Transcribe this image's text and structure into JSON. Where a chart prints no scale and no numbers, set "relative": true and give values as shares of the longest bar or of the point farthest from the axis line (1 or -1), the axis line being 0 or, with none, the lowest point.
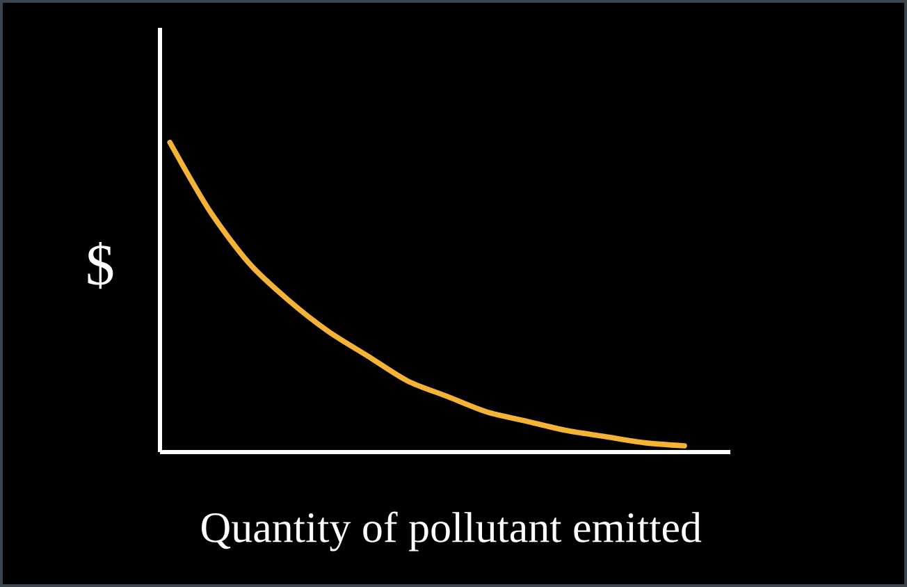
{
  "chart_data": {
    "type": "line",
    "relative": true,
    "xlabel": "Quantity of pollutant emitted",
    "ylabel": "$",
    "categories": [
      null,
      null,
      null,
      null,
      null,
      null,
      null,
      null,
      null,
      null,
      null,
      null,
      null,
      null
    ],
    "series": [
      {
        "color": "#f5b335",
        "values": [
          1,
          0.78,
          0.61,
          0.49,
          0.39,
          0.31,
          0.23,
          0.18,
          0.13,
          0.1,
          0.07,
          0.05,
          0.03,
          0.02
        ]
      }
    ]
  }
}
